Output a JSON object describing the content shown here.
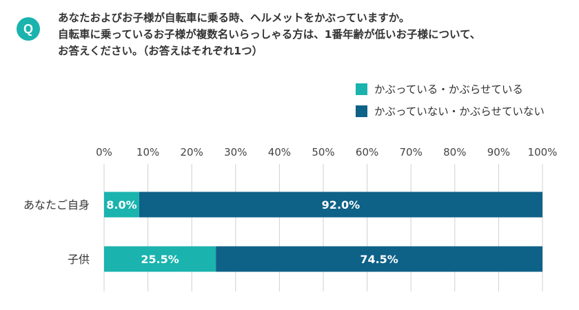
{
  "question": {
    "badge": "Q",
    "lines": [
      "あなたおよびお子様が自転車に乗る時、ヘルメットをかぶっていますか。",
      "自転車に乗っているお子様が複数名いらっしゃる方は、1番年齢が低いお子様について、",
      "お答えください。（お答えはそれぞれ1つ）"
    ]
  },
  "colors": {
    "teal": "#1ab3ae",
    "navy": "#0e6187",
    "grid": "#d0d0d0",
    "badge": "#1ab3ae"
  },
  "chart_data": {
    "type": "bar",
    "orientation": "horizontal",
    "stacked": true,
    "x_ticks": [
      "0%",
      "10%",
      "20%",
      "30%",
      "40%",
      "50%",
      "60%",
      "70%",
      "80%",
      "90%",
      "100%"
    ],
    "xlim": [
      0,
      100
    ],
    "x_axis_position": "top",
    "grid": true,
    "legend_position": "top-right",
    "categories": [
      "あなたご自身",
      "子供"
    ],
    "series": [
      {
        "name": "かぶっている・かぶらせている",
        "values": [
          8.0,
          25.5
        ],
        "labels": [
          "8.0%",
          "25.5%"
        ],
        "color": "#1ab3ae"
      },
      {
        "name": "かぶっていない・かぶらせていない",
        "values": [
          92.0,
          74.5
        ],
        "labels": [
          "92.0%",
          "74.5%"
        ],
        "color": "#0e6187"
      }
    ]
  }
}
